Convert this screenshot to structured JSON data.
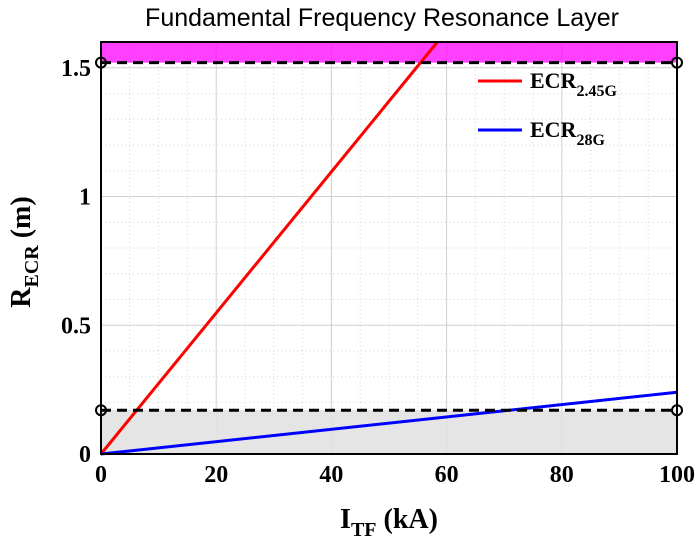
{
  "chart_data": {
    "type": "line",
    "title": "Fundamental Frequency Resonance Layer",
    "xlabel": {
      "main": "I",
      "sub": "TF",
      "unit": " (kA)"
    },
    "ylabel": {
      "main": "R",
      "sub": "ECR",
      "unit": " (m)"
    },
    "xlim": [
      0,
      100
    ],
    "ylim": [
      0,
      1.6
    ],
    "xticks": [
      0,
      20,
      40,
      60,
      80,
      100
    ],
    "yticks": [
      0,
      0.5,
      1,
      1.5
    ],
    "xtick_labels": [
      "0",
      "20",
      "40",
      "60",
      "80",
      "100"
    ],
    "ytick_labels": [
      "0",
      "0.5",
      "1",
      "1.5"
    ],
    "grid": true,
    "legend_position": "top-right",
    "series": [
      {
        "name": "ECR",
        "name_sub": "2.45G",
        "color": "#ff0000",
        "x": [
          0,
          58.4
        ],
        "y": [
          0,
          1.6
        ]
      },
      {
        "name": "ECR",
        "name_sub": "28G",
        "color": "#0000ff",
        "x": [
          0,
          100
        ],
        "y": [
          0,
          0.24
        ]
      }
    ],
    "shaded_regions": [
      {
        "y_from": 1.52,
        "y_to": 1.6,
        "color": "#ff00ff"
      },
      {
        "y_from": 0,
        "y_to": 0.17,
        "color": "#e0e0e0"
      }
    ],
    "boundary_lines": [
      {
        "y": 1.52,
        "style": "dashed",
        "color": "#000000"
      },
      {
        "y": 0.17,
        "style": "dashed",
        "color": "#000000"
      }
    ]
  }
}
